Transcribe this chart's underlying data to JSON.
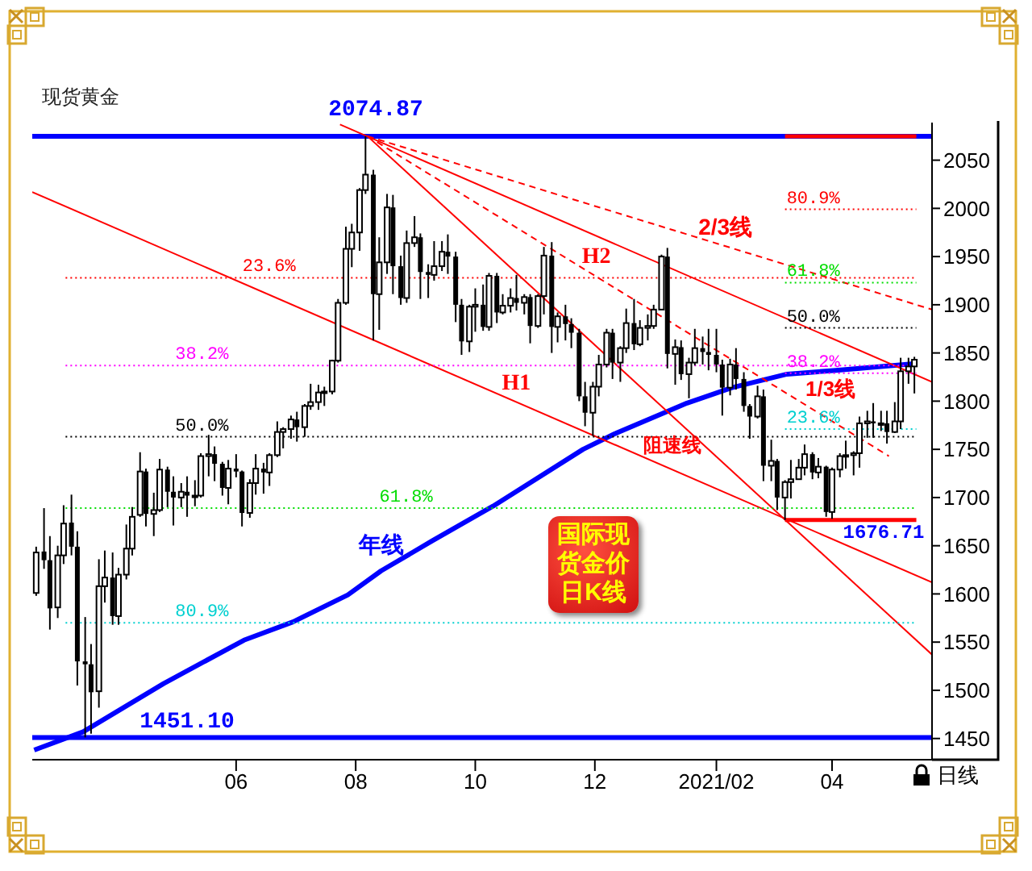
{
  "chart_data": {
    "type": "candlestick",
    "title": "现货黄金",
    "color": "#000000",
    "xlim": [
      "2020-02-18",
      "2021-05-22"
    ],
    "xticks": [
      {
        "value": "2020-06-01",
        "label": "06"
      },
      {
        "value": "2020-08-01",
        "label": "08"
      },
      {
        "value": "2020-10-01",
        "label": "10"
      },
      {
        "value": "2020-12-01",
        "label": "12"
      },
      {
        "value": "2021-02-01",
        "label": "2021/02"
      },
      {
        "value": "2021-04-01",
        "label": "04"
      }
    ],
    "ylim": [
      1428,
      2089
    ],
    "yticks": [
      1450,
      1500,
      1550,
      1600,
      1650,
      1700,
      1750,
      1800,
      1850,
      1900,
      1950,
      2000,
      2050
    ],
    "x": [
      "2020-02-20",
      "2020-02-24",
      "2020-02-27",
      "2020-03-02",
      "2020-03-05",
      "2020-03-09",
      "2020-03-12",
      "2020-03-16",
      "2020-03-19",
      "2020-03-23",
      "2020-03-26",
      "2020-03-30",
      "2020-04-02",
      "2020-04-06",
      "2020-04-09",
      "2020-04-13",
      "2020-04-16",
      "2020-04-20",
      "2020-04-23",
      "2020-04-27",
      "2020-04-30",
      "2020-05-04",
      "2020-05-07",
      "2020-05-11",
      "2020-05-14",
      "2020-05-18",
      "2020-05-21",
      "2020-05-25",
      "2020-05-28",
      "2020-06-01",
      "2020-06-04",
      "2020-06-08",
      "2020-06-11",
      "2020-06-15",
      "2020-06-18",
      "2020-06-22",
      "2020-06-25",
      "2020-06-29",
      "2020-07-02",
      "2020-07-06",
      "2020-07-09",
      "2020-07-13",
      "2020-07-16",
      "2020-07-20",
      "2020-07-23",
      "2020-07-27",
      "2020-07-30",
      "2020-08-03",
      "2020-08-06",
      "2020-08-10",
      "2020-08-13",
      "2020-08-17",
      "2020-08-20",
      "2020-08-24",
      "2020-08-27",
      "2020-08-31",
      "2020-09-03",
      "2020-09-07",
      "2020-09-10",
      "2020-09-14",
      "2020-09-17",
      "2020-09-21",
      "2020-09-24",
      "2020-09-28",
      "2020-10-01",
      "2020-10-05",
      "2020-10-08",
      "2020-10-12",
      "2020-10-15",
      "2020-10-19",
      "2020-10-22",
      "2020-10-26",
      "2020-10-29",
      "2020-11-02",
      "2020-11-05",
      "2020-11-09",
      "2020-11-12",
      "2020-11-16",
      "2020-11-19",
      "2020-11-23",
      "2020-11-26",
      "2020-11-30",
      "2020-12-03",
      "2020-12-07",
      "2020-12-10",
      "2020-12-14",
      "2020-12-17",
      "2020-12-21",
      "2020-12-24",
      "2020-12-28",
      "2020-12-31",
      "2021-01-04",
      "2021-01-07",
      "2021-01-11",
      "2021-01-14",
      "2021-01-18",
      "2021-01-21",
      "2021-01-25",
      "2021-01-28",
      "2021-02-01",
      "2021-02-04",
      "2021-02-08",
      "2021-02-11",
      "2021-02-15",
      "2021-02-18",
      "2021-02-22",
      "2021-02-25",
      "2021-03-01",
      "2021-03-04",
      "2021-03-08",
      "2021-03-11",
      "2021-03-15",
      "2021-03-18",
      "2021-03-22",
      "2021-03-25",
      "2021-03-29",
      "2021-04-01",
      "2021-04-05",
      "2021-04-08",
      "2021-04-12",
      "2021-04-15",
      "2021-04-19",
      "2021-04-22",
      "2021-04-26",
      "2021-04-29",
      "2021-05-03",
      "2021-05-06",
      "2021-05-10",
      "2021-05-13"
    ],
    "ohlc": [
      [
        1601,
        1649,
        1598,
        1643
      ],
      [
        1644,
        1689,
        1626,
        1635
      ],
      [
        1635,
        1660,
        1563,
        1585
      ],
      [
        1586,
        1650,
        1575,
        1640
      ],
      [
        1640,
        1692,
        1631,
        1673
      ],
      [
        1674,
        1703,
        1640,
        1649
      ],
      [
        1649,
        1665,
        1505,
        1530
      ],
      [
        1530,
        1576,
        1451.1,
        1527
      ],
      [
        1527,
        1548,
        1455,
        1498
      ],
      [
        1499,
        1636,
        1482,
        1608
      ],
      [
        1608,
        1645,
        1591,
        1617
      ],
      [
        1617,
        1643,
        1568,
        1577
      ],
      [
        1577,
        1627,
        1568,
        1620
      ],
      [
        1620,
        1672,
        1615,
        1647
      ],
      [
        1647,
        1690,
        1640,
        1680
      ],
      [
        1682,
        1747,
        1680,
        1727
      ],
      [
        1727,
        1730,
        1670,
        1683
      ],
      [
        1683,
        1705,
        1660,
        1687
      ],
      [
        1687,
        1740,
        1685,
        1729
      ],
      [
        1729,
        1732,
        1690,
        1706
      ],
      [
        1706,
        1722,
        1671,
        1700
      ],
      [
        1700,
        1715,
        1690,
        1706
      ],
      [
        1706,
        1722,
        1680,
        1702
      ],
      [
        1702,
        1718,
        1691,
        1702
      ],
      [
        1702,
        1746,
        1700,
        1743
      ],
      [
        1743,
        1765,
        1722,
        1745
      ],
      [
        1745,
        1753,
        1717,
        1735
      ],
      [
        1735,
        1737,
        1702,
        1710
      ],
      [
        1710,
        1739,
        1693,
        1730
      ],
      [
        1730,
        1745,
        1721,
        1727
      ],
      [
        1727,
        1728,
        1670,
        1684
      ],
      [
        1684,
        1719,
        1679,
        1715
      ],
      [
        1715,
        1745,
        1703,
        1730
      ],
      [
        1730,
        1736,
        1704,
        1726
      ],
      [
        1726,
        1746,
        1712,
        1744
      ],
      [
        1744,
        1779,
        1742,
        1768
      ],
      [
        1768,
        1773,
        1751,
        1771
      ],
      [
        1771,
        1785,
        1761,
        1781
      ],
      [
        1781,
        1789,
        1758,
        1773
      ],
      [
        1773,
        1797,
        1763,
        1795
      ],
      [
        1795,
        1818,
        1791,
        1799
      ],
      [
        1799,
        1817,
        1791,
        1809
      ],
      [
        1809,
        1815,
        1795,
        1810
      ],
      [
        1810,
        1843,
        1807,
        1842
      ],
      [
        1842,
        1906,
        1840,
        1902
      ],
      [
        1902,
        1981,
        1900,
        1958
      ],
      [
        1958,
        1984,
        1939,
        1975
      ],
      [
        1975,
        2021,
        1956,
        2019
      ],
      [
        2019,
        2074.87,
        2015,
        2035
      ],
      [
        2035,
        2040,
        1863,
        1911
      ],
      [
        1911,
        1970,
        1874,
        1944
      ],
      [
        1944,
        2015,
        1932,
        2001
      ],
      [
        2001,
        2014,
        1911,
        1940
      ],
      [
        1940,
        1951,
        1900,
        1907
      ],
      [
        1907,
        1977,
        1902,
        1964
      ],
      [
        1964,
        1992,
        1960,
        1970
      ],
      [
        1970,
        1974,
        1906,
        1934
      ],
      [
        1934,
        1942,
        1907,
        1931
      ],
      [
        1931,
        1966,
        1925,
        1940
      ],
      [
        1940,
        1966,
        1935,
        1955
      ],
      [
        1955,
        1973,
        1932,
        1950
      ],
      [
        1950,
        1955,
        1882,
        1900
      ],
      [
        1900,
        1906,
        1848,
        1862
      ],
      [
        1862,
        1900,
        1851,
        1898
      ],
      [
        1898,
        1917,
        1872,
        1900
      ],
      [
        1900,
        1921,
        1873,
        1877
      ],
      [
        1877,
        1933,
        1873,
        1930
      ],
      [
        1930,
        1933,
        1881,
        1892
      ],
      [
        1892,
        1911,
        1890,
        1899
      ],
      [
        1899,
        1917,
        1892,
        1907
      ],
      [
        1907,
        1931,
        1894,
        1902
      ],
      [
        1902,
        1911,
        1890,
        1908
      ],
      [
        1908,
        1911,
        1860,
        1878
      ],
      [
        1878,
        1911,
        1876,
        1909
      ],
      [
        1909,
        1960,
        1890,
        1951
      ],
      [
        1951,
        1965,
        1850,
        1877
      ],
      [
        1877,
        1892,
        1861,
        1888
      ],
      [
        1888,
        1900,
        1863,
        1880
      ],
      [
        1880,
        1886,
        1855,
        1871
      ],
      [
        1871,
        1875,
        1800,
        1805
      ],
      [
        1805,
        1820,
        1774,
        1788
      ],
      [
        1788,
        1820,
        1764,
        1815
      ],
      [
        1815,
        1848,
        1805,
        1838
      ],
      [
        1838,
        1875,
        1835,
        1871
      ],
      [
        1871,
        1875,
        1823,
        1840
      ],
      [
        1840,
        1857,
        1820,
        1855
      ],
      [
        1855,
        1896,
        1850,
        1881
      ],
      [
        1881,
        1906,
        1853,
        1859
      ],
      [
        1859,
        1884,
        1857,
        1876
      ],
      [
        1876,
        1890,
        1863,
        1878
      ],
      [
        1878,
        1900,
        1875,
        1895
      ],
      [
        1895,
        1952,
        1895,
        1950
      ],
      [
        1950,
        1959,
        1834,
        1849
      ],
      [
        1849,
        1864,
        1817,
        1856
      ],
      [
        1856,
        1863,
        1822,
        1828
      ],
      [
        1828,
        1845,
        1803,
        1840
      ],
      [
        1840,
        1875,
        1837,
        1855
      ],
      [
        1855,
        1867,
        1838,
        1851
      ],
      [
        1851,
        1875,
        1832,
        1848
      ],
      [
        1848,
        1875,
        1830,
        1838
      ],
      [
        1838,
        1843,
        1785,
        1814
      ],
      [
        1814,
        1844,
        1806,
        1838
      ],
      [
        1838,
        1855,
        1812,
        1823
      ],
      [
        1823,
        1830,
        1789,
        1795
      ],
      [
        1795,
        1797,
        1761,
        1784
      ],
      [
        1784,
        1816,
        1782,
        1805
      ],
      [
        1805,
        1812,
        1717,
        1733
      ],
      [
        1733,
        1760,
        1717,
        1738
      ],
      [
        1738,
        1740,
        1687,
        1700
      ],
      [
        1700,
        1718,
        1676.71,
        1716
      ],
      [
        1716,
        1739,
        1699,
        1719
      ],
      [
        1719,
        1740,
        1719,
        1731
      ],
      [
        1731,
        1755,
        1723,
        1745
      ],
      [
        1745,
        1747,
        1719,
        1726
      ],
      [
        1726,
        1741,
        1720,
        1732
      ],
      [
        1732,
        1733,
        1680,
        1685
      ],
      [
        1685,
        1731,
        1678,
        1729
      ],
      [
        1729,
        1746,
        1721,
        1743
      ],
      [
        1743,
        1759,
        1730,
        1744
      ],
      [
        1744,
        1748,
        1723,
        1746
      ],
      [
        1746,
        1784,
        1731,
        1777
      ],
      [
        1777,
        1790,
        1762,
        1779
      ],
      [
        1779,
        1798,
        1762,
        1777
      ],
      [
        1777,
        1790,
        1769,
        1777
      ],
      [
        1777,
        1790,
        1756,
        1768
      ],
      [
        1768,
        1799,
        1767,
        1779
      ],
      [
        1779,
        1845,
        1771,
        1831
      ],
      [
        1831,
        1845,
        1818,
        1836
      ],
      [
        1836,
        1846,
        1808,
        1843
      ]
    ],
    "series": [
      {
        "name": "年线",
        "type": "line",
        "color": "#0000ff",
        "x": [
          "2020-02-19",
          "2020-03-15",
          "2020-04-25",
          "2020-06-05",
          "2020-06-30",
          "2020-07-28",
          "2020-08-14",
          "2020-09-09",
          "2020-10-10",
          "2020-11-25",
          "2020-12-11",
          "2021-01-17",
          "2021-02-09",
          "2021-03-09",
          "2021-04-03",
          "2021-05-14"
        ],
        "values": [
          1438,
          1457,
          1507,
          1552,
          1571,
          1599,
          1624,
          1655,
          1691,
          1750,
          1766,
          1798,
          1814,
          1828,
          1832,
          1839
        ]
      },
      {
        "name": "H1",
        "type": "line",
        "color": "#ff0000",
        "x": [
          "2020-02-18",
          "2021-05-22"
        ],
        "values": [
          2017,
          1612
        ]
      },
      {
        "name": "H2",
        "type": "line",
        "color": "#ff0000",
        "x": [
          "2020-07-24",
          "2021-05-22"
        ],
        "values": [
          2087,
          1820
        ]
      },
      {
        "name": "2/3线",
        "type": "line",
        "color": "#ff0000",
        "line_style": "dashed",
        "x": [
          "2020-08-07",
          "2021-05-22"
        ],
        "values": [
          2074.87,
          1895
        ]
      },
      {
        "name": "1/3线",
        "type": "line",
        "color": "#ff0000",
        "line_style": "dashed",
        "x": [
          "2020-08-07",
          "2021-04-30"
        ],
        "values": [
          2074.87,
          1743
        ]
      },
      {
        "name": "阻速线",
        "type": "line",
        "color": "#ff0000",
        "x": [
          "2020-08-07",
          "2021-05-22"
        ],
        "values": [
          2074.87,
          1537
        ]
      },
      {
        "name": "23.6%",
        "type": "line",
        "color": "#ff0000",
        "line_style": "dotted",
        "x": [
          "2020-03-06",
          "2021-05-14"
        ],
        "values": [
          1928,
          1928
        ]
      },
      {
        "name": "38.2%",
        "type": "line",
        "color": "#ff00ff",
        "line_style": "dotted",
        "x": [
          "2020-03-06",
          "2021-05-14"
        ],
        "values": [
          1837,
          1837
        ]
      },
      {
        "name": "50.0%",
        "type": "line",
        "color": "#000000",
        "line_style": "dotted",
        "x": [
          "2020-03-06",
          "2021-05-14"
        ],
        "values": [
          1763,
          1763
        ]
      },
      {
        "name": "61.8%",
        "type": "line",
        "color": "#00dd00",
        "line_style": "dotted",
        "x": [
          "2020-03-06",
          "2021-05-14"
        ],
        "values": [
          1689,
          1689
        ]
      },
      {
        "name": "80.9%",
        "type": "line",
        "color": "#00d0d0",
        "line_style": "dotted",
        "x": [
          "2020-03-06",
          "2021-05-14"
        ],
        "values": [
          1570,
          1570
        ]
      },
      {
        "name": "80.9%",
        "type": "line",
        "color": "#ff0000",
        "line_style": "dotted",
        "x": [
          "2021-03-08",
          "2021-05-14"
        ],
        "values": [
          1999,
          1999
        ]
      },
      {
        "name": "61.8%",
        "type": "line",
        "color": "#00dd00",
        "line_style": "dotted",
        "x": [
          "2021-03-08",
          "2021-05-14"
        ],
        "values": [
          1923,
          1923
        ]
      },
      {
        "name": "50.0%",
        "type": "line",
        "color": "#000000",
        "line_style": "dotted",
        "x": [
          "2021-03-08",
          "2021-05-14"
        ],
        "values": [
          1876,
          1876
        ]
      },
      {
        "name": "38.2%",
        "type": "line",
        "color": "#ff00ff",
        "line_style": "dotted",
        "x": [
          "2021-03-08",
          "2021-05-14"
        ],
        "values": [
          1829,
          1829
        ]
      },
      {
        "name": "23.6%",
        "type": "line",
        "color": "#00d0d0",
        "line_style": "dotted",
        "x": [
          "2021-03-08",
          "2021-05-14"
        ],
        "values": [
          1771,
          1771
        ]
      },
      {
        "type": "line",
        "color": "#ff0000",
        "x": [
          "2021-03-08",
          "2021-05-14"
        ],
        "values": [
          2074.87,
          2074.87
        ]
      },
      {
        "type": "line",
        "color": "#ff0000",
        "x": [
          "2021-03-08",
          "2021-05-14"
        ],
        "values": [
          1676.71,
          1676.71
        ]
      }
    ],
    "ref_lines": [
      {
        "axis": "y",
        "value": 2074.87,
        "label": "2074.87",
        "color": "#0000ff"
      },
      {
        "axis": "y",
        "value": 1451.1,
        "label": "1451.10",
        "color": "#0000ff"
      }
    ],
    "annotations": [
      "国际现货金价日K线",
      "日线",
      "1676.71"
    ]
  }
}
